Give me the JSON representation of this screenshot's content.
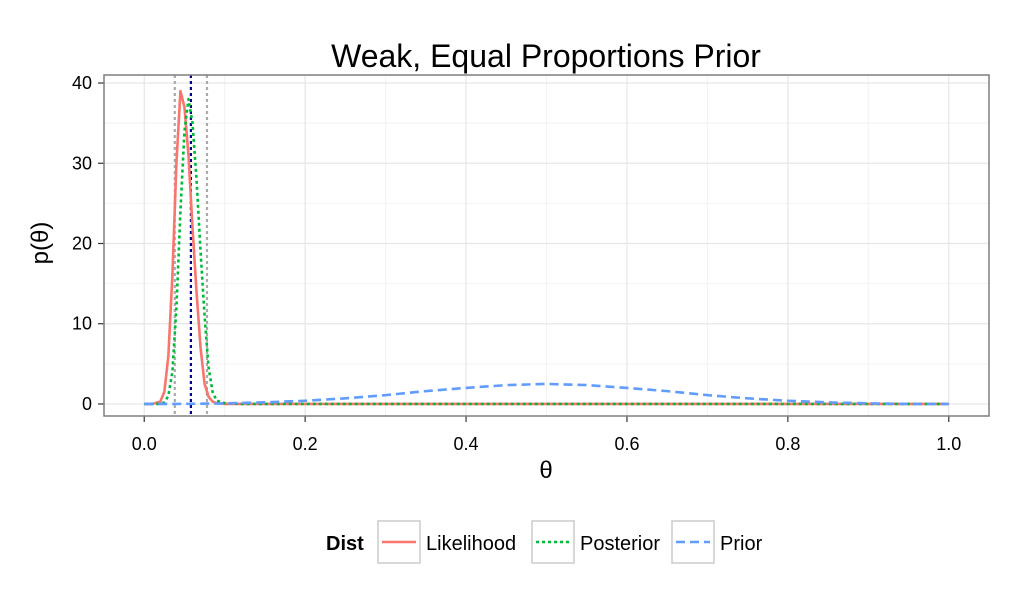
{
  "chart_data": {
    "type": "line",
    "title": "Weak, Equal Proportions Prior",
    "xlabel": "θ",
    "ylabel": "p(θ)",
    "xlim": [
      -0.05,
      1.05
    ],
    "ylim": [
      -1.5,
      41
    ],
    "x_ticks": [
      "0.0",
      "0.2",
      "0.4",
      "0.6",
      "0.8",
      "1.0"
    ],
    "y_ticks": [
      "0",
      "10",
      "20",
      "30",
      "40"
    ],
    "grid": true,
    "legend": {
      "title": "Dist",
      "position": "bottom",
      "entries": [
        "Likelihood",
        "Posterior",
        "Prior"
      ]
    },
    "series": [
      {
        "name": "Likelihood",
        "color": "#f8766d",
        "dash": "solid",
        "x": [
          0,
          0.01,
          0.02,
          0.025,
          0.03,
          0.035,
          0.04,
          0.045,
          0.05,
          0.055,
          0.06,
          0.065,
          0.07,
          0.075,
          0.08,
          0.085,
          0.09,
          0.1,
          0.12,
          0.15,
          0.2,
          0.3,
          0.4,
          0.5,
          0.6,
          0.7,
          0.8,
          0.9,
          1.0
        ],
        "y": [
          0,
          0,
          0.3,
          1.5,
          6,
          16,
          30,
          39,
          37,
          31,
          22,
          14,
          7,
          2.5,
          0.9,
          0.3,
          0.1,
          0,
          0,
          0,
          0,
          0,
          0,
          0,
          0,
          0,
          0,
          0,
          0
        ]
      },
      {
        "name": "Posterior",
        "color": "#00ba38",
        "dash": "dotted",
        "x": [
          0,
          0.02,
          0.025,
          0.03,
          0.035,
          0.04,
          0.045,
          0.05,
          0.055,
          0.06,
          0.065,
          0.07,
          0.075,
          0.08,
          0.085,
          0.09,
          0.1,
          0.12,
          0.15,
          0.2,
          0.3,
          0.4,
          0.5,
          0.6,
          0.7,
          0.8,
          0.9,
          1.0
        ],
        "y": [
          0,
          0,
          0.2,
          1,
          4,
          12,
          24,
          34,
          38,
          35,
          28,
          19,
          11,
          4.5,
          1.5,
          0.4,
          0.1,
          0,
          0,
          0,
          0,
          0,
          0,
          0,
          0,
          0,
          0,
          0
        ]
      },
      {
        "name": "Prior",
        "color": "#619cff",
        "dash": "dashed",
        "x": [
          0,
          0.05,
          0.1,
          0.15,
          0.2,
          0.25,
          0.3,
          0.35,
          0.4,
          0.45,
          0.5,
          0.55,
          0.6,
          0.65,
          0.7,
          0.75,
          0.8,
          0.85,
          0.9,
          0.95,
          1.0
        ],
        "y": [
          0,
          0.01,
          0.07,
          0.2,
          0.4,
          0.7,
          1.1,
          1.6,
          2.0,
          2.35,
          2.5,
          2.35,
          2.0,
          1.6,
          1.1,
          0.7,
          0.4,
          0.2,
          0.07,
          0.01,
          0
        ]
      }
    ],
    "vlines": [
      {
        "x": 0.038,
        "color": "#aaaaaa",
        "dash": "dotted"
      },
      {
        "x": 0.058,
        "color": "#00008b",
        "dash": "dotted"
      },
      {
        "x": 0.078,
        "color": "#aaaaaa",
        "dash": "dotted"
      }
    ]
  }
}
